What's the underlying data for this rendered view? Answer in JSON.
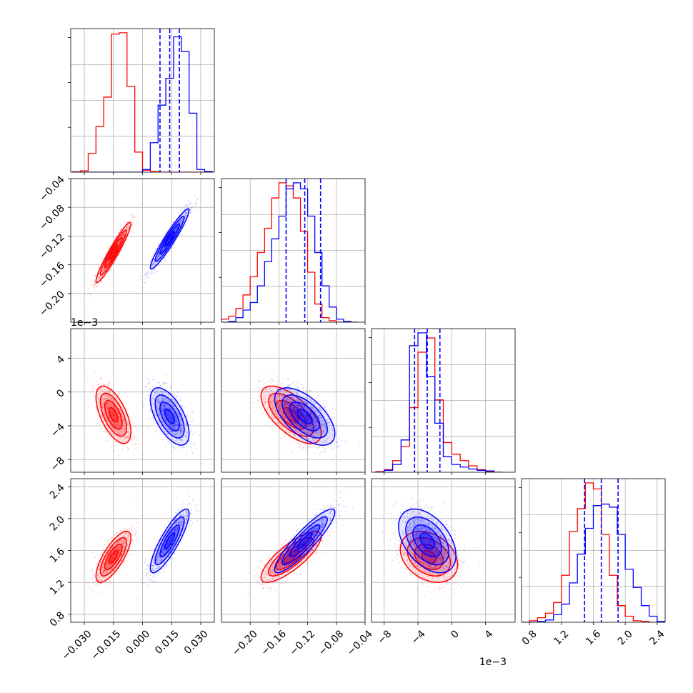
{
  "chart_data": {
    "type": "corner",
    "title": "",
    "grid": true,
    "dimensions": 4,
    "series": [
      {
        "name": "",
        "color": "#ff0000",
        "mean": [
          -0.015,
          -0.143,
          -0.0027,
          1.52
        ],
        "std": [
          0.0045,
          0.021,
          0.0017,
          0.16
        ],
        "corr": [
          [
            1,
            0.95,
            -0.6,
            0.75
          ],
          [
            0.95,
            1,
            -0.65,
            0.8
          ],
          [
            -0.6,
            -0.65,
            1,
            -0.3
          ],
          [
            0.75,
            0.8,
            -0.3,
            1
          ]
        ],
        "quantiles": []
      },
      {
        "name": "",
        "color": "#0000ff",
        "mean": [
          0.014,
          -0.124,
          -0.0029,
          1.72
        ],
        "std": [
          0.005,
          0.021,
          0.0017,
          0.2
        ],
        "corr": [
          [
            1,
            0.95,
            -0.6,
            0.85
          ],
          [
            0.95,
            1,
            -0.6,
            0.9
          ],
          [
            -0.6,
            -0.6,
            1,
            -0.45
          ],
          [
            0.85,
            0.9,
            -0.45,
            1
          ]
        ],
        "quantiles": [
          [
            0.009,
            0.014,
            0.019
          ],
          [
            -0.15,
            -0.124,
            -0.102
          ],
          [
            -0.0044,
            -0.0029,
            -0.0014
          ],
          [
            1.49,
            1.7,
            1.91
          ]
        ]
      }
    ],
    "histograms": [
      {
        "bin_edges": [
          -0.036,
          -0.032,
          -0.028,
          -0.024,
          -0.02,
          -0.016,
          -0.012,
          -0.008,
          -0.004,
          0.0,
          0.004,
          0.008,
          0.012,
          0.016,
          0.02,
          0.024,
          0.028,
          0.032,
          0.036
        ],
        "red": [
          3,
          10,
          140,
          340,
          560,
          1030,
          1040,
          640,
          150,
          15,
          5,
          0,
          0,
          0,
          0,
          0,
          0,
          0
        ],
        "blue": [
          0,
          0,
          0,
          0,
          0,
          0,
          0,
          0,
          0,
          20,
          220,
          500,
          700,
          1010,
          900,
          440,
          20,
          5
        ]
      },
      {
        "bin_edges": [
          -0.24,
          -0.23,
          -0.22,
          -0.21,
          -0.2,
          -0.19,
          -0.18,
          -0.17,
          -0.16,
          -0.15,
          -0.14,
          -0.13,
          -0.12,
          -0.11,
          -0.1,
          -0.09,
          -0.08,
          -0.07,
          -0.06,
          -0.05
        ],
        "red": [
          20,
          40,
          90,
          180,
          300,
          460,
          620,
          820,
          920,
          900,
          820,
          600,
          330,
          120,
          30,
          10,
          0,
          0,
          0
        ],
        "blue": [
          0,
          5,
          30,
          80,
          130,
          240,
          400,
          550,
          700,
          880,
          920,
          880,
          700,
          460,
          240,
          100,
          20,
          5,
          0
        ]
      },
      {
        "bin_edges": [
          -0.009,
          -0.008,
          -0.007,
          -0.006,
          -0.005,
          -0.004,
          -0.003,
          -0.002,
          -0.001,
          0.0,
          0.001,
          0.002,
          0.003,
          0.004,
          0.005,
          0.006
        ],
        "red": [
          5,
          20,
          90,
          200,
          500,
          930,
          1040,
          560,
          230,
          140,
          90,
          50,
          20,
          5,
          0
        ],
        "blue": [
          0,
          15,
          60,
          250,
          980,
          1080,
          740,
          380,
          120,
          60,
          40,
          25,
          15,
          10,
          0
        ]
      },
      {
        "bin_edges": [
          0.7,
          0.8,
          0.9,
          1.0,
          1.1,
          1.2,
          1.3,
          1.4,
          1.5,
          1.6,
          1.7,
          1.8,
          1.9,
          2.0,
          2.1,
          2.2,
          2.3,
          2.4,
          2.5
        ],
        "red": [
          0,
          10,
          30,
          60,
          130,
          310,
          600,
          750,
          920,
          880,
          580,
          310,
          110,
          40,
          10,
          5,
          0,
          0
        ],
        "blue": [
          0,
          0,
          5,
          15,
          50,
          120,
          260,
          450,
          620,
          770,
          780,
          760,
          580,
          350,
          230,
          110,
          40,
          5
        ]
      }
    ],
    "axes": [
      {
        "range": [
          -0.037,
          0.037
        ],
        "ticks": [
          "−0.030",
          "−0.015",
          "0.000",
          "0.015",
          "0.030"
        ],
        "tick_values": [
          -0.03,
          -0.015,
          0,
          0.015,
          0.03
        ],
        "offset": ""
      },
      {
        "range": [
          -0.24,
          -0.04
        ],
        "ticks": [
          "−0.20",
          "−0.16",
          "−0.12",
          "−0.08",
          "−0.04"
        ],
        "tick_values": [
          -0.2,
          -0.16,
          -0.12,
          -0.08,
          -0.04
        ],
        "offset": ""
      },
      {
        "range": [
          -0.0095,
          0.0075
        ],
        "ticks": [
          "−8",
          "−4",
          "0",
          "4"
        ],
        "tick_values": [
          -0.008,
          -0.004,
          0,
          0.004
        ],
        "offset": "1e−3"
      },
      {
        "range": [
          0.7,
          2.5
        ],
        "ticks": [
          "0.8",
          "1.2",
          "1.6",
          "2.0",
          "2.4"
        ],
        "tick_values": [
          0.8,
          1.2,
          1.6,
          2.0,
          2.4
        ],
        "offset": ""
      }
    ]
  }
}
